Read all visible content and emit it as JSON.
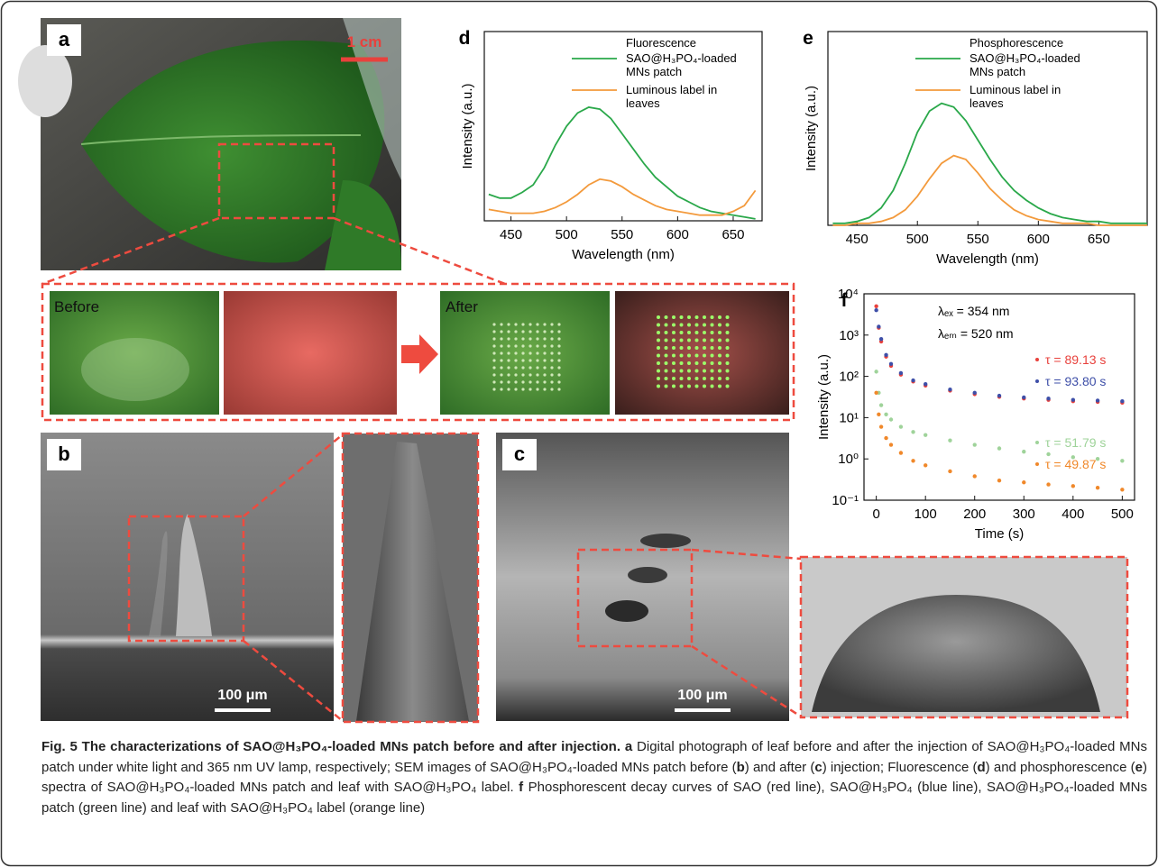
{
  "panels": {
    "a": {
      "label": "a",
      "scale": "1 cm"
    },
    "strip": {
      "before": "Before",
      "after": "After"
    },
    "b": {
      "label": "b",
      "scale": "100 μm"
    },
    "c": {
      "label": "c",
      "scale": "100 μm"
    }
  },
  "chart_data": [
    {
      "type": "line",
      "panel": "d",
      "xlabel": "Wavelength (nm)",
      "ylabel": "Intensity (a.u.)",
      "legend_title": "Fluorescence",
      "x": [
        430,
        440,
        450,
        460,
        470,
        480,
        490,
        500,
        510,
        520,
        530,
        540,
        550,
        560,
        570,
        580,
        590,
        600,
        610,
        620,
        630,
        640,
        650,
        660,
        670
      ],
      "xlim": [
        426,
        676
      ],
      "xticks": [
        450,
        500,
        550,
        600,
        650
      ],
      "ylim": [
        0,
        100
      ],
      "series": [
        {
          "name": "SAO@H₃PO₄-loaded MNs patch",
          "color": "#2aa84a",
          "values": [
            14,
            12,
            12,
            15,
            19,
            28,
            40,
            50,
            57,
            60,
            59,
            54,
            46,
            38,
            30,
            23,
            18,
            13,
            10,
            7,
            5,
            4,
            3,
            2,
            1
          ]
        },
        {
          "name": "Luminous label in leaves",
          "color": "#f39a3c",
          "values": [
            6,
            5,
            4,
            4,
            4,
            5,
            7,
            10,
            14,
            19,
            22,
            21,
            18,
            14,
            11,
            8,
            6,
            5,
            4,
            3,
            3,
            3,
            5,
            8,
            16
          ]
        }
      ]
    },
    {
      "type": "line",
      "panel": "e",
      "xlabel": "Wavelength (nm)",
      "ylabel": "Intensity (a.u.)",
      "legend_title": "Phosphorescence",
      "x": [
        430,
        440,
        450,
        460,
        470,
        480,
        490,
        500,
        510,
        520,
        530,
        540,
        550,
        560,
        570,
        580,
        590,
        600,
        610,
        620,
        630,
        640,
        650,
        660,
        670,
        680,
        690
      ],
      "xlim": [
        426,
        690
      ],
      "xticks": [
        450,
        500,
        550,
        600,
        650
      ],
      "ylim": [
        0,
        100
      ],
      "series": [
        {
          "name": "SAO@H₃PO₄-loaded MNs patch",
          "color": "#2aa84a",
          "values": [
            1,
            1,
            2,
            4,
            9,
            18,
            32,
            48,
            59,
            63,
            61,
            54,
            44,
            34,
            25,
            18,
            13,
            9,
            6,
            4,
            3,
            2,
            2,
            1,
            1,
            1,
            1
          ]
        },
        {
          "name": "Luminous label in leaves",
          "color": "#f39a3c",
          "values": [
            0,
            0,
            1,
            1,
            2,
            4,
            8,
            15,
            24,
            32,
            36,
            34,
            27,
            19,
            13,
            8,
            5,
            3,
            2,
            1,
            1,
            1,
            0,
            0,
            0,
            0,
            0
          ]
        }
      ]
    },
    {
      "type": "scatter",
      "panel": "f",
      "xlabel": "Time (s)",
      "ylabel": "Intensity (a.u.)",
      "log_y": true,
      "annotations": [
        "λₑₓ = 354 nm",
        "λₑₘ = 520 nm"
      ],
      "x": [
        0,
        5,
        10,
        20,
        30,
        50,
        75,
        100,
        150,
        200,
        250,
        300,
        350,
        400,
        450,
        500
      ],
      "xlim": [
        -25,
        525
      ],
      "xticks": [
        0,
        100,
        200,
        300,
        400,
        500
      ],
      "ylim": [
        0.1,
        10000
      ],
      "yticks": [
        {
          "value": 0.1,
          "label": "10⁻¹"
        },
        {
          "value": 1,
          "label": "10⁰"
        },
        {
          "value": 10,
          "label": "10¹"
        },
        {
          "value": 100,
          "label": "10²"
        },
        {
          "value": 1000,
          "label": "10³"
        },
        {
          "value": 10000,
          "label": "10⁴"
        }
      ],
      "series": [
        {
          "name": "τ = 89.13 s",
          "color": "#e8413c",
          "values": [
            5000,
            1500,
            700,
            300,
            180,
            110,
            75,
            60,
            45,
            37,
            32,
            29,
            27,
            25,
            24,
            23
          ]
        },
        {
          "name": "τ = 93.80 s",
          "color": "#3e4fa8",
          "values": [
            4000,
            1600,
            800,
            330,
            200,
            120,
            80,
            65,
            48,
            40,
            34,
            31,
            29,
            27,
            26,
            25
          ]
        },
        {
          "name": "τ = 51.79 s",
          "color": "#9fd39a",
          "values": [
            130,
            40,
            20,
            12,
            9,
            6,
            4.5,
            3.8,
            2.8,
            2.2,
            1.8,
            1.5,
            1.3,
            1.1,
            1.0,
            0.9
          ]
        },
        {
          "name": "τ = 49.87 s",
          "color": "#f0882a",
          "values": [
            40,
            12,
            6,
            3.2,
            2.2,
            1.4,
            0.9,
            0.7,
            0.5,
            0.38,
            0.3,
            0.27,
            0.24,
            0.22,
            0.2,
            0.18
          ]
        }
      ]
    }
  ],
  "caption": {
    "segments": [
      {
        "text": "Fig. 5 The characterizations of SAO@H₃PO₄-loaded MNs patch before and after injection. a",
        "bold": true
      },
      {
        "text": " Digital photograph of leaf before and after the injection of SAO@H₃PO₄-loaded MNs patch under white light and 365 nm UV lamp, respectively; SEM images of SAO@H₃PO₄-loaded MNs patch before (",
        "bold": false
      },
      {
        "text": "b",
        "bold": true
      },
      {
        "text": ") and after (",
        "bold": false
      },
      {
        "text": "c",
        "bold": true
      },
      {
        "text": ") injection; Fluorescence (",
        "bold": false
      },
      {
        "text": "d",
        "bold": true
      },
      {
        "text": ") and phosphorescence (",
        "bold": false
      },
      {
        "text": "e",
        "bold": true
      },
      {
        "text": ") spectra of SAO@H₃PO₄-loaded MNs patch and leaf with SAO@H₃PO₄ label. ",
        "bold": false
      },
      {
        "text": "f",
        "bold": true
      },
      {
        "text": " Phosphorescent decay curves of SAO (red line), SAO@H₃PO₄ (blue line), SAO@H₃PO₄-loaded MNs patch (green line) and leaf with SAO@H₃PO₄ label (orange line)",
        "bold": false
      }
    ]
  }
}
